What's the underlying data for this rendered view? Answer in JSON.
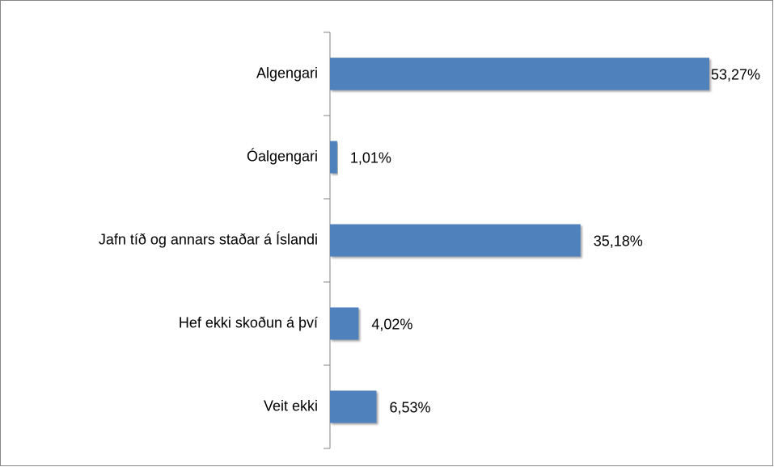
{
  "chart_data": {
    "type": "bar",
    "orientation": "horizontal",
    "categories": [
      "Algengari",
      "Óalgengari",
      "Jafn tíð og annars staðar á Íslandi",
      "Hef ekki skoðun á því",
      "Veit ekki"
    ],
    "values": [
      53.27,
      1.01,
      35.18,
      4.02,
      6.53
    ],
    "value_labels": [
      "53,27%",
      "1,01%",
      "35,18%",
      "4,02%",
      "6,53%"
    ],
    "color": "#4f81bd"
  }
}
